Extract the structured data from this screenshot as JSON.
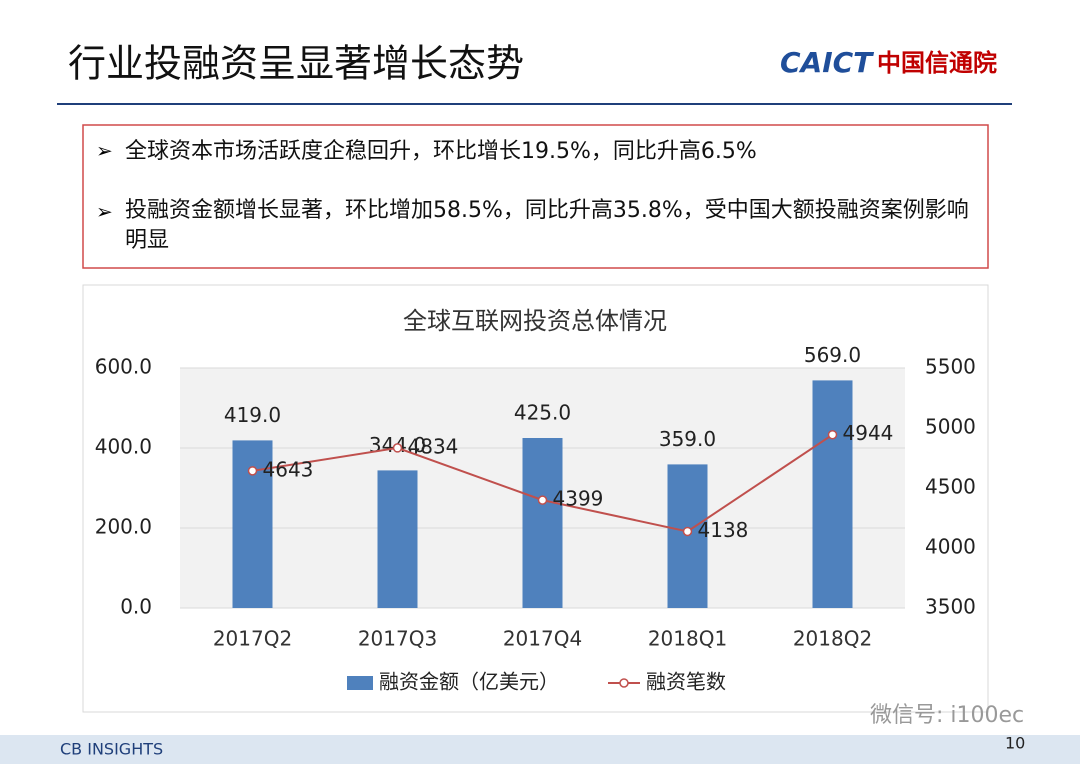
{
  "header": {
    "title": "行业投融资呈显著增长态势",
    "logo_en": "CAICT",
    "logo_cn": "中国信通院"
  },
  "bullets": [
    "全球资本市场活跃度企稳回升，环比增长19.5%，同比升高6.5%",
    "投融资金额增长显著，环比增加58.5%，同比升高35.8%，受中国大额投融资案例影响明显"
  ],
  "chart_data": {
    "type": "bar",
    "title": "全球互联网投资总体情况",
    "categories": [
      "2017Q2",
      "2017Q3",
      "2017Q4",
      "2018Q1",
      "2018Q2"
    ],
    "series": [
      {
        "name": "融资金额（亿美元）",
        "type": "bar",
        "color": "#4f81bd",
        "axis": "y",
        "values": [
          419,
          344,
          425,
          359,
          569
        ],
        "value_labels": [
          "419.0",
          "344.0",
          "425.0",
          "359.0",
          "569.0"
        ]
      },
      {
        "name": "融资笔数",
        "type": "line",
        "color": "#c0504d",
        "axis": "y2",
        "values": [
          4643,
          4834,
          4399,
          4138,
          4944
        ]
      }
    ],
    "ylim": [
      0,
      600
    ],
    "yticks": [
      {
        "value": 0,
        "label": "0.0"
      },
      {
        "value": 200,
        "label": "200.0"
      },
      {
        "value": 400,
        "label": "400.0"
      },
      {
        "value": 600,
        "label": "600.0"
      }
    ],
    "y2lim": [
      3500,
      5500
    ],
    "y2ticks": [
      3500,
      4000,
      4500,
      5000,
      5500
    ],
    "grid": true,
    "legend": "bottom"
  },
  "footer": {
    "source": "CB INSIGHTS",
    "page": "10",
    "wechat": "微信号: i100ec"
  }
}
